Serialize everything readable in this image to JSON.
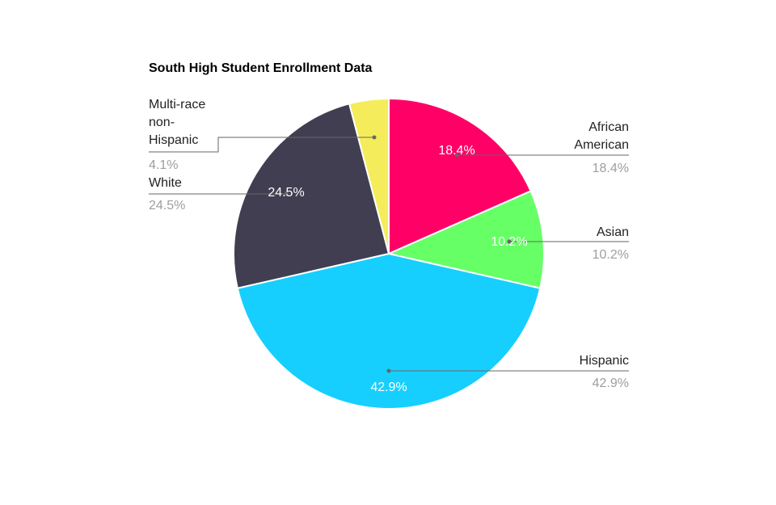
{
  "chart_data": {
    "type": "pie",
    "title": "South High Student Enrollment Data",
    "start_angle_deg": 0,
    "direction": "clockwise",
    "slices": [
      {
        "name": "African American",
        "value": 18.4,
        "display": "18.4%",
        "color": "#ff0066"
      },
      {
        "name": "Asian",
        "value": 10.2,
        "display": "10.2%",
        "color": "#66ff66"
      },
      {
        "name": "Hispanic",
        "value": 42.9,
        "display": "42.9%",
        "color": "#16cffe"
      },
      {
        "name": "White",
        "value": 24.5,
        "display": "24.5%",
        "color": "#413e51"
      },
      {
        "name": "Multi-race non-Hispanic",
        "value": 4.1,
        "display": "4.1%",
        "color": "#f4ec5a"
      }
    ],
    "external_labels": [
      {
        "lines": [
          "African",
          "American"
        ],
        "value": "18.4%"
      },
      {
        "lines": [
          "Asian"
        ],
        "value": "10.2%"
      },
      {
        "lines": [
          "Hispanic"
        ],
        "value": "42.9%"
      },
      {
        "lines": [
          "White"
        ],
        "value": "24.5%"
      },
      {
        "lines": [
          "Multi-race",
          "non-",
          "Hispanic"
        ],
        "value": "4.1%"
      }
    ],
    "legend": "none"
  }
}
